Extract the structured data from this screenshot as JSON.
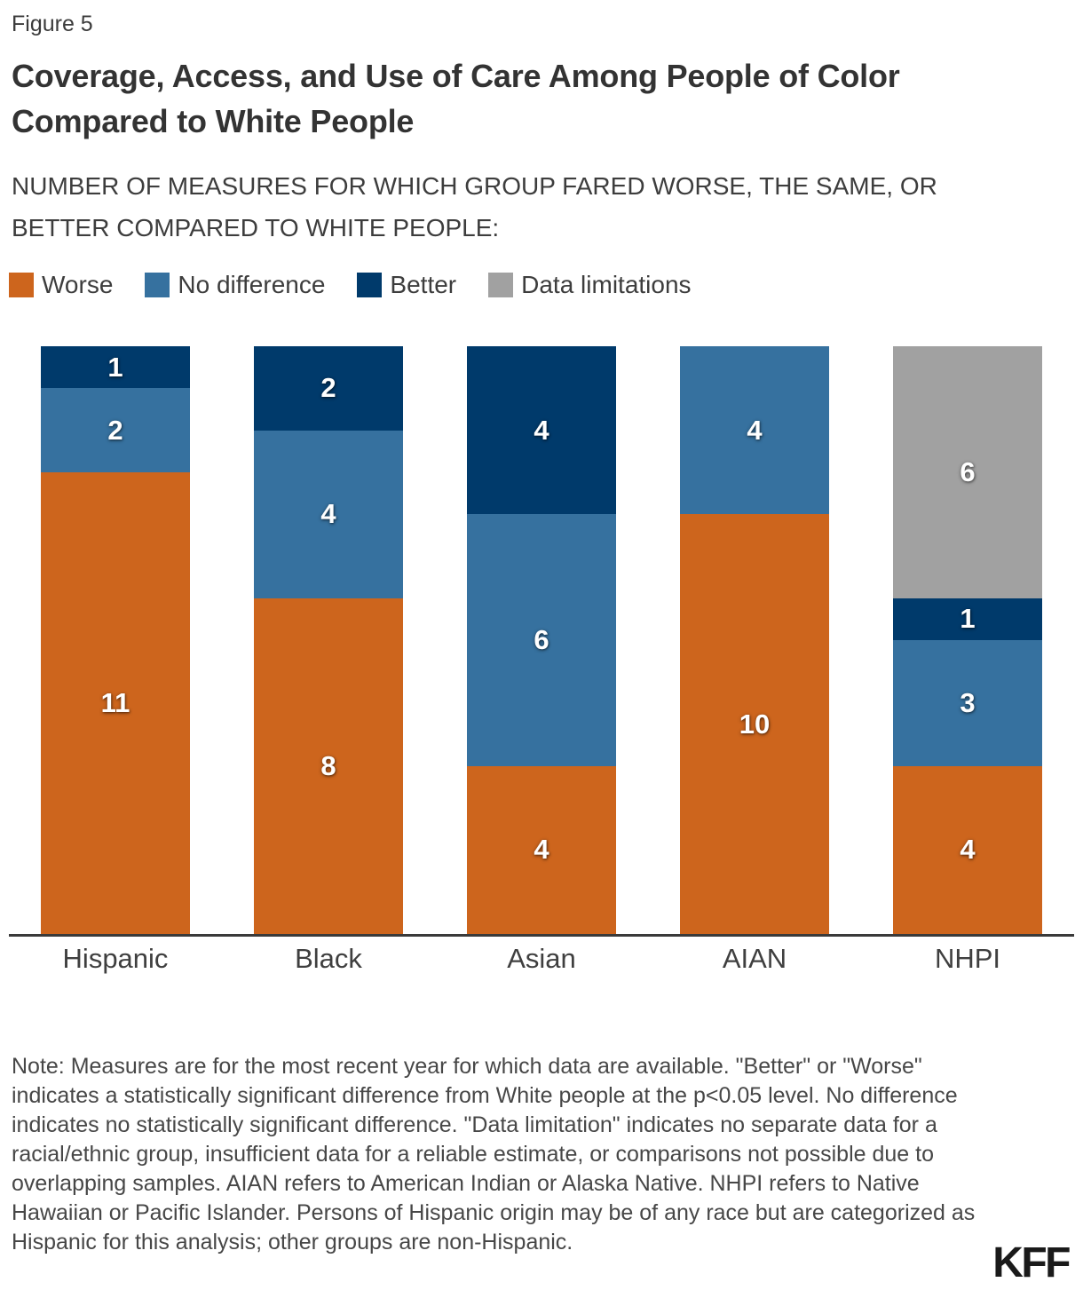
{
  "header": {
    "figure_label": "Figure 5",
    "title": "Coverage, Access, and Use of Care Among People of Color Compared to White People",
    "subtitle": "NUMBER OF MEASURES FOR WHICH GROUP FARED WORSE, THE SAME, OR BETTER COMPARED TO WHITE PEOPLE:"
  },
  "colors": {
    "worse": "#CD651D",
    "no_difference": "#36719F",
    "better": "#003A6B",
    "data_limitations": "#A1A1A1",
    "axis": "#3A3A3A"
  },
  "legend": [
    {
      "key": "worse",
      "label": "Worse",
      "color": "#CD651D"
    },
    {
      "key": "no_difference",
      "label": "No difference",
      "color": "#36719F"
    },
    {
      "key": "better",
      "label": "Better",
      "color": "#003A6B"
    },
    {
      "key": "data_limitations",
      "label": "Data limitations",
      "color": "#A1A1A1"
    }
  ],
  "chart_data": {
    "type": "bar",
    "stacked": true,
    "title": "Coverage, Access, and Use of Care Among People of Color Compared to White People",
    "xlabel": "",
    "ylabel": "Number of measures",
    "total_per_bar": 14,
    "grid": false,
    "legend_position": "top",
    "categories": [
      "Hispanic",
      "Black",
      "Asian",
      "AIAN",
      "NHPI"
    ],
    "series": [
      {
        "name": "Worse",
        "color": "#CD651D",
        "values": [
          11,
          8,
          4,
          10,
          4
        ]
      },
      {
        "name": "No difference",
        "color": "#36719F",
        "values": [
          2,
          4,
          6,
          4,
          3
        ]
      },
      {
        "name": "Better",
        "color": "#003A6B",
        "values": [
          1,
          2,
          4,
          0,
          1
        ]
      },
      {
        "name": "Data limitations",
        "color": "#A1A1A1",
        "values": [
          0,
          0,
          0,
          0,
          6
        ]
      }
    ],
    "stack_order_top_to_bottom": [
      "Data limitations",
      "Better",
      "No difference",
      "Worse"
    ],
    "data_labels_shown": true
  },
  "note": "Note: Measures are for the most recent year for which data are available. \"Better\" or \"Worse\" indicates a statistically significant difference from White people at the p<0.05 level. No difference indicates no statistically significant difference. \"Data limitation\" indicates no separate data for a racial/ethnic group, insufficient data for a reliable estimate, or comparisons not possible due to overlapping samples. AIAN refers to American Indian or Alaska Native. NHPI refers to Native Hawaiian or Pacific Islander. Persons of Hispanic origin may be of any race but are categorized as Hispanic for this analysis; other groups are non-Hispanic.",
  "logo": "KFF"
}
